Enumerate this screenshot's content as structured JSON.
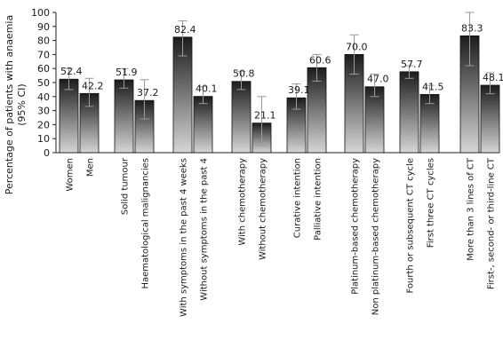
{
  "chart_data": {
    "type": "bar",
    "ylabel_line1": "Percentage of patients with anaemia",
    "ylabel_line2": "(95% CI)",
    "ylim": [
      0,
      100
    ],
    "yticks": [
      0,
      10,
      20,
      30,
      40,
      50,
      60,
      70,
      80,
      90,
      100
    ],
    "grid": false,
    "groups": [
      {
        "bars": [
          {
            "category": "Women",
            "value": 52.4,
            "value_label": "52.4",
            "ci": [
              45,
              60
            ]
          },
          {
            "category": "Men",
            "value": 42.2,
            "value_label": "42.2",
            "ci": [
              33,
              53
            ]
          }
        ]
      },
      {
        "bars": [
          {
            "category": "Solid tumour",
            "value": 51.9,
            "value_label": "51.9",
            "ci": [
              46,
              60
            ]
          },
          {
            "category": "Haematological malignancies",
            "value": 37.2,
            "value_label": "37.2",
            "ci": [
              24,
              52
            ]
          }
        ]
      },
      {
        "bars": [
          {
            "category": "With symptoms in the past 4 weeks",
            "value": 82.4,
            "value_label": "82.4",
            "ci": [
              69,
              94
            ]
          },
          {
            "category": "Without symptoms in the past 4",
            "value": 40.1,
            "value_label": "40.1",
            "ci": [
              35,
              47
            ]
          }
        ]
      },
      {
        "bars": [
          {
            "category": "With chemotherapy",
            "value": 50.8,
            "value_label": "50.8",
            "ci": [
              45,
              58
            ]
          },
          {
            "category": "Without chemotherapy",
            "value": 21.1,
            "value_label": "21.1",
            "ci": [
              5,
              40
            ]
          }
        ]
      },
      {
        "bars": [
          {
            "category": "Curative intention",
            "value": 39.1,
            "value_label": "39.1",
            "ci": [
              31,
              49
            ]
          },
          {
            "category": "Palliative intention",
            "value": 60.6,
            "value_label": "60.6",
            "ci": [
              51,
              70
            ]
          }
        ]
      },
      {
        "bars": [
          {
            "category": "Platinum-based chemotherapy",
            "value": 70.0,
            "value_label": "70.0",
            "ci": [
              56,
              84
            ]
          },
          {
            "category": "Non platinum-based chemotherapy",
            "value": 47.0,
            "value_label": "47.0",
            "ci": [
              40,
              56
            ]
          }
        ]
      },
      {
        "bars": [
          {
            "category": "Fourth or subsequent CT cycle",
            "value": 57.7,
            "value_label": "57.7",
            "ci": [
              53,
              62
            ]
          },
          {
            "category": "First three CT cycles",
            "value": 41.5,
            "value_label": "41.5",
            "ci": [
              35,
              48
            ]
          }
        ]
      },
      {
        "bars": [
          {
            "category": "More than 3 lines of CT",
            "value": 83.3,
            "value_label": "83.3",
            "ci": [
              62,
              100
            ]
          },
          {
            "category": "First-, second- or third-line CT",
            "value": 48.1,
            "value_label": "48.1",
            "ci": [
              42,
              57
            ]
          }
        ]
      }
    ]
  }
}
